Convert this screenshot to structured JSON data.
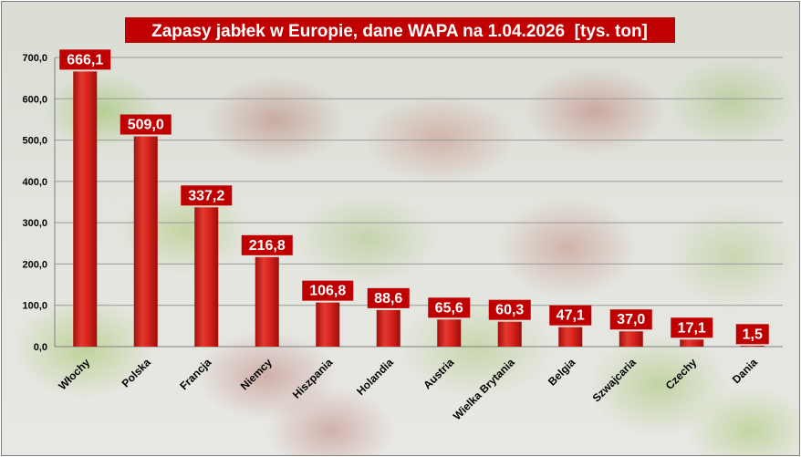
{
  "chart_data": {
    "type": "bar",
    "title": "Zapasy jabłek w Europie, dane WAPA na 1.04.2026  [tys. ton]",
    "xlabel": "",
    "ylabel": "",
    "categories": [
      "Włochy",
      "Polska",
      "Francja",
      "Niemcy",
      "Hiszpania",
      "Holandia",
      "Austria",
      "Wielka Brytania",
      "Belgia",
      "Szwajcaria",
      "Czechy",
      "Dania"
    ],
    "values": [
      666.1,
      509.0,
      337.2,
      216.8,
      106.8,
      88.6,
      65.6,
      60.3,
      47.1,
      37.0,
      17.1,
      1.5
    ],
    "value_labels": [
      "666,1",
      "509,0",
      "337,2",
      "216,8",
      "106,8",
      "88,6",
      "65,6",
      "60,3",
      "47,1",
      "37,0",
      "17,1",
      "1,5"
    ],
    "ylim": [
      0,
      700
    ],
    "yticks": [
      "0,0",
      "100,0",
      "200,0",
      "300,0",
      "400,0",
      "500,0",
      "600,0",
      "700,0"
    ],
    "grid": true,
    "legend": "none",
    "colors": {
      "bar": "#d9251e",
      "bar_dark": "#a30f0c",
      "label_bg": "#c00000",
      "label_text": "#ffffff",
      "title_bg": "#c00000",
      "grid": "#9a9a9a"
    }
  }
}
